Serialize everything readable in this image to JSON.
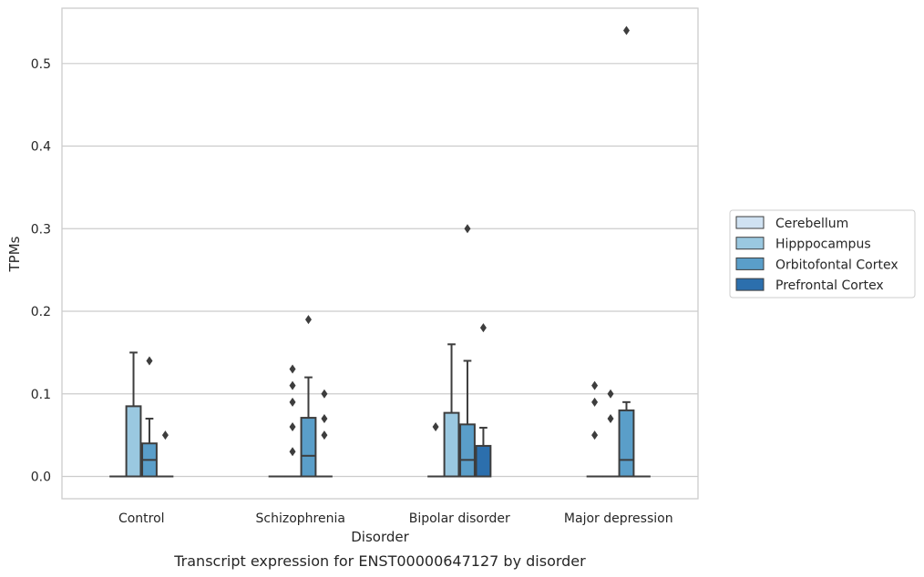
{
  "chart_data": {
    "type": "boxplot",
    "title": "",
    "caption": "Transcript expression for ENST00000647127 by disorder",
    "xlabel": "Disorder",
    "ylabel": "TPMs",
    "ylim": [
      -0.027,
      0.567
    ],
    "yticks": [
      0.0,
      0.1,
      0.2,
      0.3,
      0.4,
      0.5
    ],
    "ytick_labels": [
      "0.0",
      "0.1",
      "0.2",
      "0.3",
      "0.4",
      "0.5"
    ],
    "grid": "horizontal",
    "legend_position": "right",
    "categories": [
      "Control",
      "Schizophrenia",
      "Bipolar disorder",
      "Major depression"
    ],
    "series": [
      {
        "name": "Cerebellum",
        "color": "#d0e2f2",
        "boxes": [
          {
            "q1": 0,
            "median": 0,
            "q3": 0,
            "whislo": 0,
            "whishi": 0,
            "fliers": []
          },
          {
            "q1": 0,
            "median": 0,
            "q3": 0,
            "whislo": 0,
            "whishi": 0,
            "fliers": []
          },
          {
            "q1": 0,
            "median": 0,
            "q3": 0,
            "whislo": 0,
            "whishi": 0,
            "fliers": [
              0.06
            ]
          },
          {
            "q1": 0,
            "median": 0,
            "q3": 0,
            "whislo": 0,
            "whishi": 0,
            "fliers": [
              0.05,
              0.09,
              0.11
            ]
          }
        ]
      },
      {
        "name": "Hipppocampus",
        "color": "#9ac8e0",
        "boxes": [
          {
            "q1": 0,
            "median": 0,
            "q3": 0.085,
            "whislo": 0,
            "whishi": 0.15,
            "fliers": []
          },
          {
            "q1": 0,
            "median": 0,
            "q3": 0,
            "whislo": 0,
            "whishi": 0,
            "fliers": [
              0.03,
              0.06,
              0.09,
              0.11,
              0.13
            ]
          },
          {
            "q1": 0,
            "median": 0,
            "q3": 0.077,
            "whislo": 0,
            "whishi": 0.16,
            "fliers": []
          },
          {
            "q1": 0,
            "median": 0,
            "q3": 0,
            "whislo": 0,
            "whishi": 0,
            "fliers": [
              0.07,
              0.1
            ]
          }
        ]
      },
      {
        "name": "Orbitofontal Cortex",
        "color": "#5a9ec9",
        "boxes": [
          {
            "q1": 0,
            "median": 0.02,
            "q3": 0.04,
            "whislo": 0,
            "whishi": 0.07,
            "fliers": [
              0.14
            ]
          },
          {
            "q1": 0,
            "median": 0.025,
            "q3": 0.071,
            "whislo": 0,
            "whishi": 0.12,
            "fliers": [
              0.19
            ]
          },
          {
            "q1": 0,
            "median": 0.02,
            "q3": 0.063,
            "whislo": 0,
            "whishi": 0.14,
            "fliers": [
              0.3
            ]
          },
          {
            "q1": 0,
            "median": 0.02,
            "q3": 0.08,
            "whislo": 0,
            "whishi": 0.09,
            "fliers": [
              0.54
            ]
          }
        ]
      },
      {
        "name": "Prefrontal Cortex",
        "color": "#2c6fad",
        "boxes": [
          {
            "q1": 0,
            "median": 0,
            "q3": 0,
            "whislo": 0,
            "whishi": 0,
            "fliers": [
              0.05
            ]
          },
          {
            "q1": 0,
            "median": 0,
            "q3": 0,
            "whislo": 0,
            "whishi": 0,
            "fliers": [
              0.05,
              0.07,
              0.1
            ]
          },
          {
            "q1": 0,
            "median": 0,
            "q3": 0.037,
            "whislo": 0,
            "whishi": 0.059,
            "fliers": [
              0.18
            ]
          },
          {
            "q1": 0,
            "median": 0,
            "q3": 0,
            "whislo": 0,
            "whishi": 0,
            "fliers": []
          }
        ]
      }
    ]
  }
}
